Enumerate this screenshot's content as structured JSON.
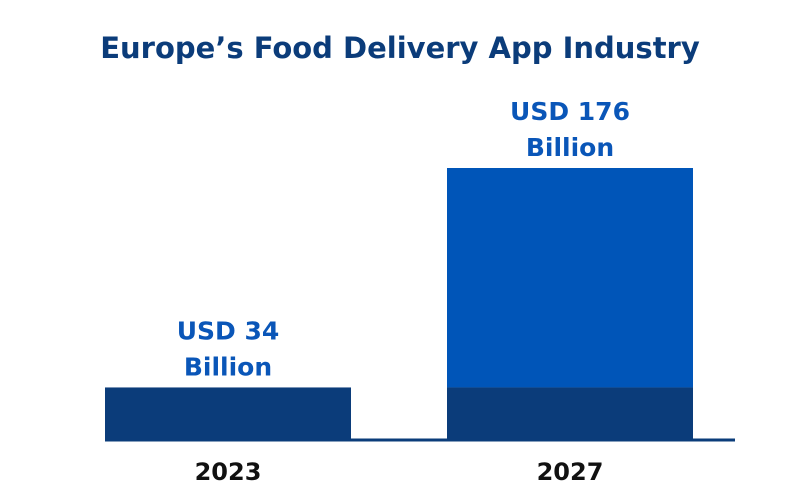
{
  "chart_data": {
    "type": "bar",
    "title": "Europe’s Food Delivery App Industry",
    "categories": [
      "2023",
      "2027"
    ],
    "values": [
      34,
      176
    ],
    "value_labels": [
      [
        "USD 34",
        "Billion"
      ],
      [
        "USD 176",
        "Billion"
      ]
    ],
    "xlabel": "",
    "ylabel": "",
    "grid": false,
    "legend": "none",
    "colors": {
      "title": "#0b3c7a",
      "base_bar": "#0b3c7a",
      "growth_segment": "#0055b8",
      "value_label": "#0a56b8",
      "axis": "#0b3c7a",
      "category_label": "#111111"
    }
  }
}
